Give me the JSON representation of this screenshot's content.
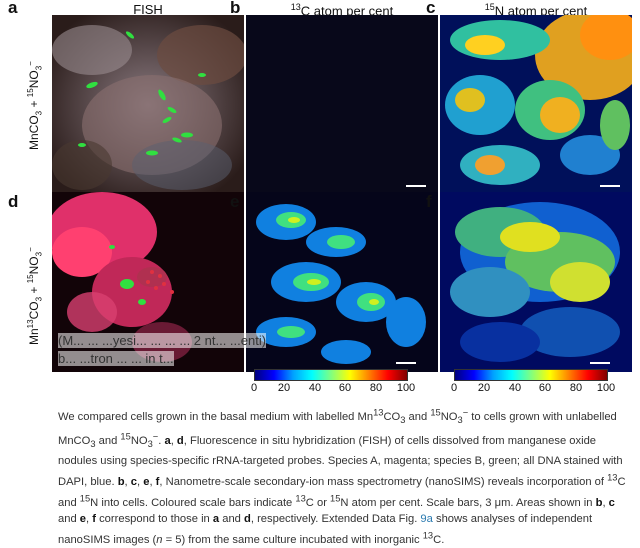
{
  "columns": [
    {
      "letter": "a",
      "title": "FISH"
    },
    {
      "letter": "b",
      "title": "13C atom per cent"
    },
    {
      "letter": "c",
      "title": "15N atom per cent"
    }
  ],
  "row_labels": [
    "MnCO3 + 15NO3−",
    "Mn13CO3 + 15NO3−"
  ],
  "panel_letters": {
    "a": "a",
    "b": "b",
    "c": "c",
    "d": "d",
    "e": "e",
    "f": "f"
  },
  "colorbar_ticks": [
    "0",
    "20",
    "40",
    "60",
    "80",
    "100"
  ],
  "overlay": {
    "line1": "(M... ... ...yesi... ... ... ... 2 nt... ...enti)",
    "line2": "b... ...tron ... ... in t..."
  },
  "caption": {
    "p1": "We compared cells grown in the basal medium with labelled Mn",
    "p1_sup1": "13",
    "p1b": "CO",
    "p1c": "3",
    "p1d": " and ",
    "p1_sup2": "15",
    "p1e": "NO",
    "p1f": "3",
    "p1g": "− to cells grown with unlabelled MnCO",
    "p1h": "3",
    "p1i": " and ",
    "full_text_rest": "NO3−. a, d, Fluorescence in situ hybridization (FISH) of cells dissolved from manganese oxide nodules using species-specific rRNA-targeted probes. Species A, magenta; species B, green; all DNA stained with DAPI, blue. b, c, e, f, Nanometre-scale secondary-ion mass spectrometry (nanoSIMS) reveals incorporation of 13C and 15N into cells. Coloured scale bars indicate 13C or 15N atom per cent. Scale bars, 3 μm. Areas shown in b, c and e, f correspond to those in a and d, respectively. Extended Data Fig. 9a shows analyses of independent nanoSIMS images (n = 5) from the same culture incubated with inorganic 13C.",
    "link_text": "9a"
  }
}
